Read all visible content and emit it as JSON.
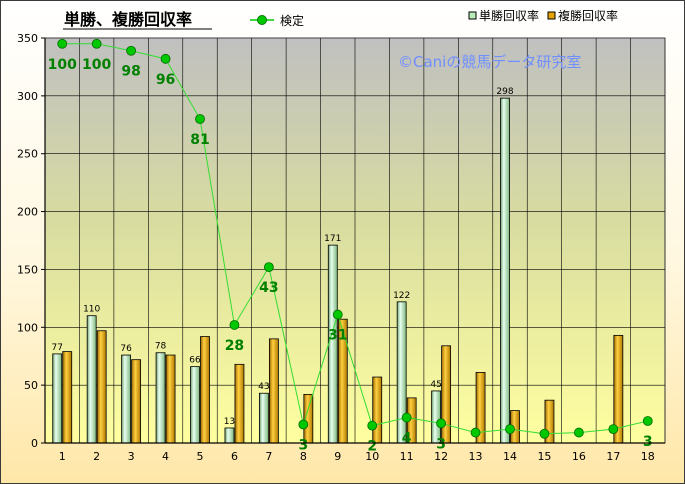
{
  "chart_data": {
    "type": "bar",
    "title": "単勝、複勝回収率",
    "watermark": "©Caniの競馬データ研究室",
    "categories": [
      "1",
      "2",
      "3",
      "4",
      "5",
      "6",
      "7",
      "8",
      "9",
      "10",
      "11",
      "12",
      "13",
      "14",
      "15",
      "16",
      "17",
      "18"
    ],
    "yticks": [
      "0",
      "50",
      "100",
      "150",
      "200",
      "250",
      "300",
      "350"
    ],
    "ylim": [
      0,
      350
    ],
    "series": [
      {
        "name": "単勝回収率",
        "color": "#b8ecb8",
        "values": [
          77,
          110,
          76,
          78,
          66,
          13,
          43,
          0,
          171,
          0,
          122,
          45,
          0,
          298,
          0,
          0,
          0,
          0
        ],
        "labels": [
          "77",
          "110",
          "76",
          "78",
          "66",
          "13",
          "43",
          "",
          "171",
          "",
          "122",
          "45",
          "",
          "298",
          "",
          "",
          "",
          ""
        ]
      },
      {
        "name": "複勝回収率",
        "color": "#e5a500",
        "values": [
          79,
          97,
          72,
          76,
          92,
          68,
          90,
          42,
          107,
          57,
          39,
          84,
          61,
          28,
          37,
          0,
          93,
          0
        ]
      }
    ],
    "line": {
      "name": "検定",
      "color": "#00cc00",
      "values": [
        345,
        345,
        339,
        332,
        280,
        102,
        152,
        16,
        111,
        15,
        22,
        17,
        9,
        12,
        8,
        9,
        12,
        19
      ],
      "labels": [
        "100",
        "100",
        "98",
        "96",
        "81",
        "28",
        "43",
        "3",
        "31",
        "2",
        "4",
        "3",
        "",
        "",
        "",
        "",
        "",
        "3"
      ]
    },
    "colors": {
      "plot_bg": "#c0c0c0",
      "grid": "#000000",
      "line_label": "#008000"
    },
    "legend_position": "top"
  }
}
